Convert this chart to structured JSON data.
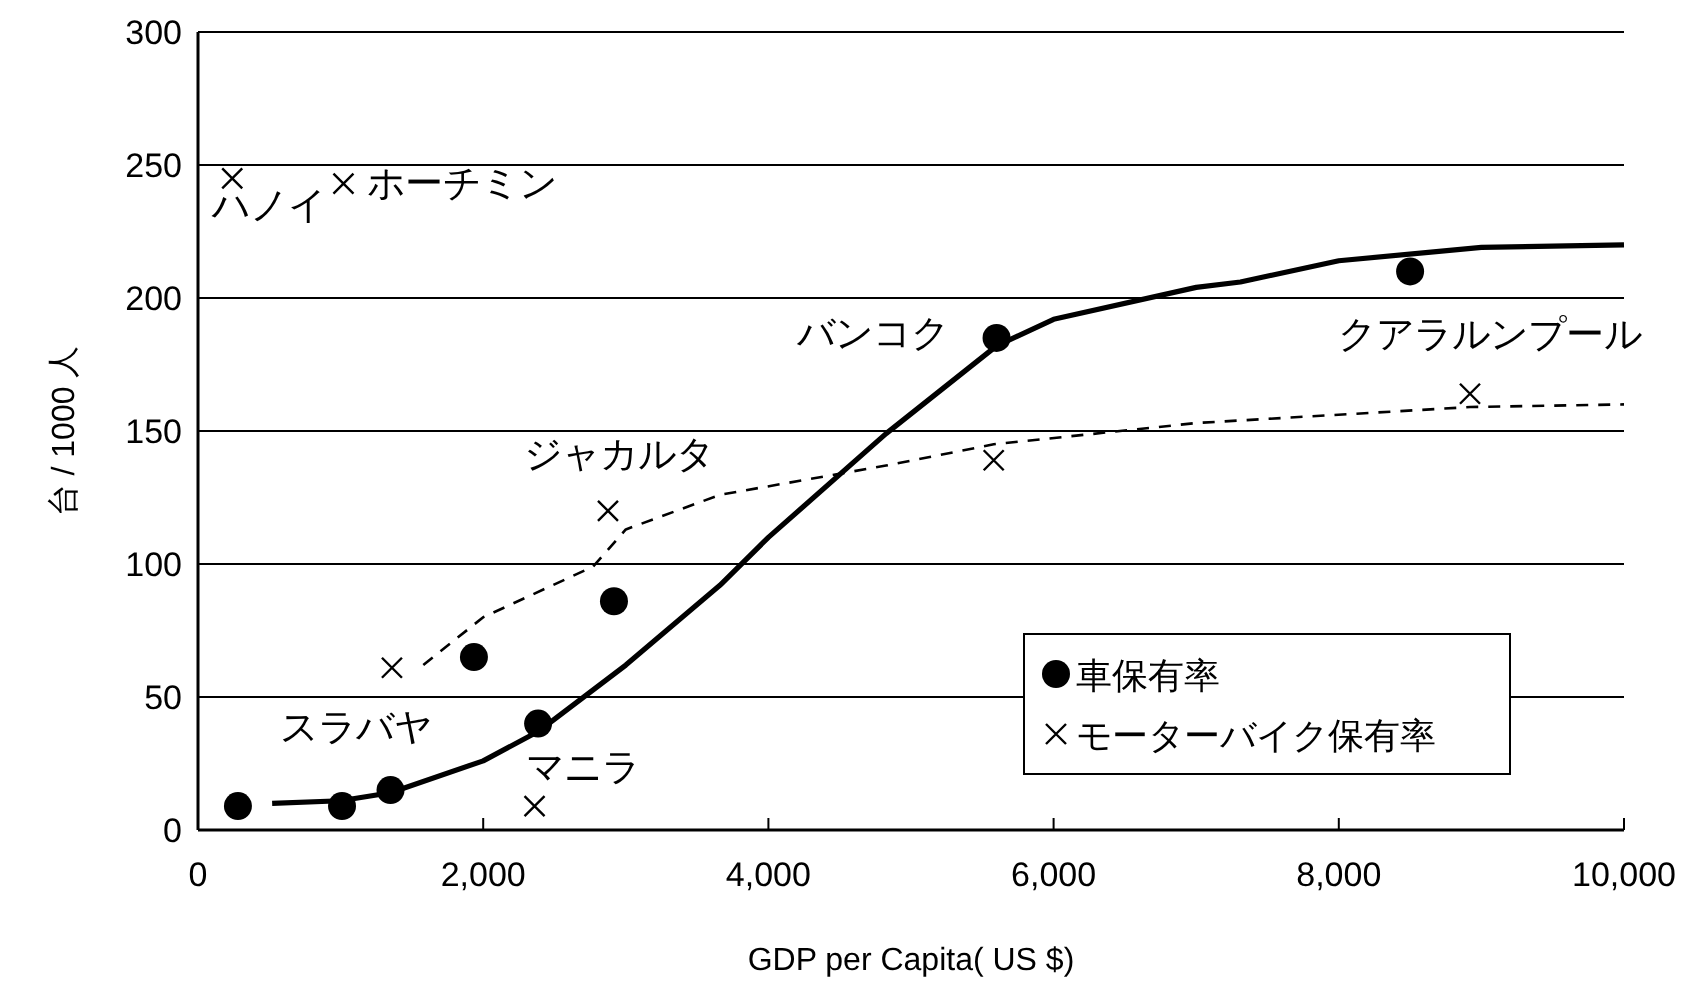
{
  "chart_data": {
    "type": "scatter",
    "xlabel": "GDP per Capita( US $)",
    "ylabel": "台 / 1000 人",
    "xlim": [
      0,
      10000
    ],
    "ylim": [
      0,
      300
    ],
    "xticks": [
      0,
      {
        "value": 2000,
        "label": "2,000"
      },
      {
        "value": 4000,
        "label": "4,000"
      },
      {
        "value": 6000,
        "label": "6,000"
      },
      {
        "value": 8000,
        "label": "8,000"
      },
      {
        "value": 10000,
        "label": "10,000"
      }
    ],
    "yticks": [
      0,
      50,
      100,
      150,
      200,
      250,
      300
    ],
    "grid": "y",
    "legend": "bottom right",
    "series": [
      {
        "name": "車保有率",
        "marker": "circle",
        "color": "#000000",
        "x": [
          280,
          1010,
          1350,
          1935,
          2385,
          2917,
          5600,
          8500
        ],
        "values": [
          9,
          9,
          15,
          65,
          40,
          86,
          185,
          210
        ]
      },
      {
        "name": "モーターバイク保有率",
        "marker": "cross",
        "color": "#000000",
        "x": [
          240,
          1020,
          1360,
          2360,
          2875,
          5580,
          8920
        ],
        "values": [
          245,
          243,
          61,
          9,
          120,
          139,
          164
        ]
      },
      {
        "type": "line",
        "line_style": "solid",
        "color": "#000000",
        "x": [
          520,
          1000,
          1350,
          2000,
          2385,
          3000,
          3660,
          4000,
          4825,
          5600,
          6000,
          7000,
          7310,
          8000,
          9000,
          10000
        ],
        "values": [
          10,
          11,
          14,
          26,
          37,
          62,
          92,
          110,
          149,
          182,
          192,
          204,
          206,
          214,
          219,
          220
        ]
      },
      {
        "type": "line",
        "line_style": "dashed",
        "color": "#000000",
        "x": [
          1580,
          2000,
          2770,
          3000,
          3660,
          4825,
          5580,
          7000,
          8920,
          10000
        ],
        "values": [
          62,
          80,
          99,
          113,
          126,
          137,
          145,
          153,
          159,
          160
        ]
      }
    ],
    "annotations": [
      {
        "text": "ハノイ",
        "x": 240,
        "y": 245
      },
      {
        "text": "ホーチミン",
        "x": 1020,
        "y": 243
      },
      {
        "text": "スラバヤ",
        "x": 1360,
        "y": 61
      },
      {
        "text": "マニラ",
        "x": 2385,
        "y": 40
      },
      {
        "text": "ジャカルタ",
        "x": 2875,
        "y": 120
      },
      {
        "text": "バンコク",
        "x": 5600,
        "y": 185
      },
      {
        "text": "クアラルンプール",
        "x": 8500,
        "y": 210
      }
    ]
  }
}
